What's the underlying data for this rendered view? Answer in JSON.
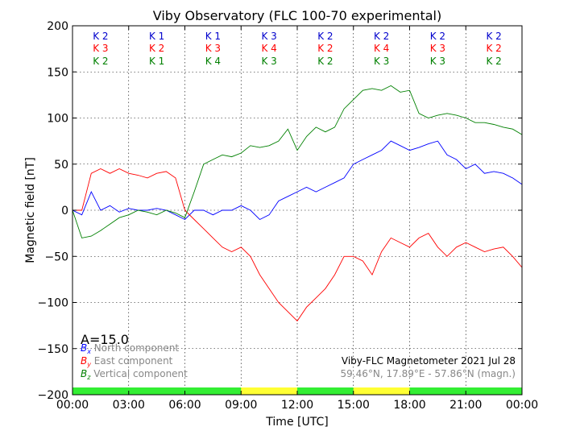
{
  "chart_data": {
    "type": "line",
    "title": "Viby Observatory (FLC 100-70 experimental)",
    "xlabel": "Time [UTC]",
    "ylabel": "Magnetic field [nT]",
    "xlim": [
      0,
      24
    ],
    "ylim": [
      -200,
      200
    ],
    "grid": true,
    "x_ticks": [
      0,
      3,
      6,
      9,
      12,
      15,
      18,
      21,
      24
    ],
    "x_tick_labels": [
      "00:00",
      "03:00",
      "06:00",
      "09:00",
      "12:00",
      "15:00",
      "18:00",
      "21:00",
      "00:00"
    ],
    "y_ticks": [
      -200,
      -150,
      -100,
      -50,
      0,
      50,
      100,
      150,
      200
    ],
    "y_tick_labels": [
      "−200",
      "−150",
      "−100",
      "−50",
      "0",
      "50",
      "100",
      "150",
      "200"
    ],
    "x": [
      0,
      0.5,
      1,
      1.5,
      2,
      2.5,
      3,
      3.5,
      4,
      4.5,
      5,
      5.5,
      6,
      6.5,
      7,
      7.5,
      8,
      8.5,
      9,
      9.5,
      10,
      10.5,
      11,
      11.5,
      12,
      12.5,
      13,
      13.5,
      14,
      14.5,
      15,
      15.5,
      16,
      16.5,
      17,
      17.5,
      18,
      18.5,
      19,
      19.5,
      20,
      20.5,
      21,
      21.5,
      22,
      22.5,
      23,
      23.5,
      24
    ],
    "series": [
      {
        "name": "North component",
        "symbol": "Bx",
        "color": "#0000ff",
        "values": [
          0,
          -5,
          20,
          0,
          5,
          -2,
          2,
          0,
          0,
          2,
          0,
          -5,
          -10,
          0,
          0,
          -5,
          0,
          0,
          5,
          0,
          -10,
          -5,
          10,
          15,
          20,
          25,
          20,
          25,
          30,
          35,
          50,
          55,
          60,
          65,
          75,
          70,
          65,
          68,
          72,
          75,
          60,
          55,
          45,
          50,
          40,
          42,
          40,
          35,
          28
        ]
      },
      {
        "name": "East component",
        "symbol": "By",
        "color": "#ff0000",
        "values": [
          0,
          0,
          40,
          45,
          40,
          45,
          40,
          38,
          35,
          40,
          42,
          35,
          0,
          -10,
          -20,
          -30,
          -40,
          -45,
          -40,
          -50,
          -70,
          -85,
          -100,
          -110,
          -120,
          -105,
          -95,
          -85,
          -70,
          -50,
          -50,
          -55,
          -70,
          -45,
          -30,
          -35,
          -40,
          -30,
          -25,
          -40,
          -50,
          -40,
          -35,
          -40,
          -45,
          -42,
          -40,
          -50,
          -62
        ]
      },
      {
        "name": "Vertical component",
        "symbol": "Bz",
        "color": "#008000",
        "values": [
          0,
          -30,
          -28,
          -22,
          -15,
          -8,
          -5,
          0,
          -2,
          -5,
          0,
          -3,
          -8,
          20,
          50,
          55,
          60,
          58,
          62,
          70,
          68,
          70,
          75,
          88,
          65,
          80,
          90,
          85,
          90,
          110,
          120,
          130,
          132,
          130,
          135,
          128,
          130,
          105,
          100,
          103,
          105,
          103,
          100,
          95,
          95,
          93,
          90,
          88,
          82
        ]
      }
    ],
    "k_indices": [
      {
        "blue": "K 2",
        "red": "K 3",
        "green": "K 2"
      },
      {
        "blue": "K 1",
        "red": "K 2",
        "green": "K 1"
      },
      {
        "blue": "K 1",
        "red": "K 3",
        "green": "K 4"
      },
      {
        "blue": "K 3",
        "red": "K 4",
        "green": "K 3"
      },
      {
        "blue": "K 2",
        "red": "K 2",
        "green": "K 2"
      },
      {
        "blue": "K 2",
        "red": "K 4",
        "green": "K 3"
      },
      {
        "blue": "K 2",
        "red": "K 3",
        "green": "K 3"
      },
      {
        "blue": "K 2",
        "red": "K 2",
        "green": "K 2"
      }
    ],
    "k_colors": {
      "blue": "#0000cc",
      "red": "#ff0000",
      "green": "#008000"
    },
    "status_bar": [
      {
        "start": 0,
        "end": 9,
        "color": "#33ee33"
      },
      {
        "start": 9,
        "end": 12,
        "color": "#ffff33"
      },
      {
        "start": 12,
        "end": 15,
        "color": "#33ee33"
      },
      {
        "start": 15,
        "end": 18,
        "color": "#ffff33"
      },
      {
        "start": 18,
        "end": 24,
        "color": "#33ee33"
      }
    ],
    "a_index": "A=15.0",
    "legend": [
      {
        "sym": "B",
        "sub": "x",
        "label": " North component",
        "color": "#0000ff"
      },
      {
        "sym": "B",
        "sub": "y",
        "label": " East component",
        "color": "#ff0000"
      },
      {
        "sym": "B",
        "sub": "z",
        "label": " Vertical component",
        "color": "#008000"
      }
    ],
    "legend_text_color": "#888888",
    "info_line1": "Viby-FLC Magnetometer 2021 Jul 28",
    "info_line2": "59.46°N, 17.89°E - 57.86°N (magn.)"
  }
}
